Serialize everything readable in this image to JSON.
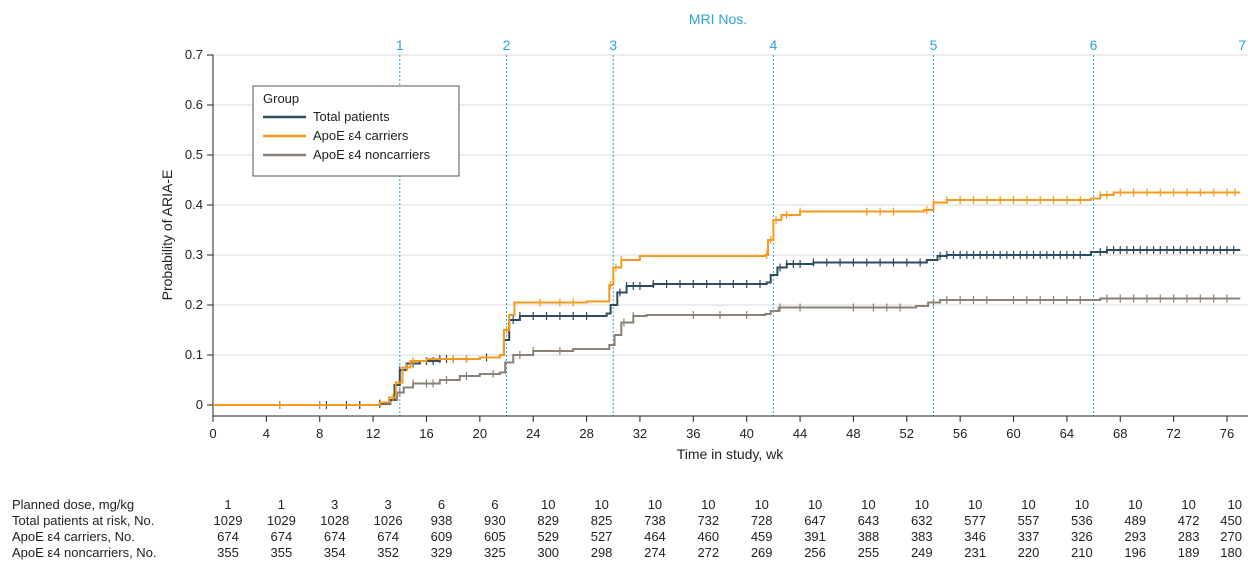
{
  "colors": {
    "total": "#2d4c5e",
    "carriers": "#f39a1f",
    "noncarriers": "#8a8278",
    "mri": "#2aa3d6",
    "grid": "#d9d9d9"
  },
  "mri_title": "MRI Nos.",
  "chart_data": {
    "type": "line",
    "xlabel": "Time in study, wk",
    "ylabel": "Probability of ARIA-E",
    "xlim": [
      0,
      77
    ],
    "ylim": [
      -0.02,
      0.7
    ],
    "xticks": [
      0,
      4,
      8,
      12,
      16,
      20,
      24,
      28,
      32,
      36,
      40,
      44,
      48,
      52,
      56,
      60,
      64,
      68,
      72,
      76
    ],
    "yticks": [
      0,
      0.1,
      0.2,
      0.3,
      0.4,
      0.5,
      0.6,
      0.7
    ],
    "ytick_labels": [
      "0",
      "0.1",
      "0.2",
      "0.3",
      "0.4",
      "0.5",
      "0.6",
      "0.7"
    ],
    "grid": "horizontal",
    "legend": {
      "title": "Group",
      "position": "top-left",
      "entries": [
        "Total patients",
        "ApoE ε4 carriers",
        "ApoE ε4 noncarriers"
      ]
    },
    "mri_markers": [
      {
        "label": "1",
        "x": 14
      },
      {
        "label": "2",
        "x": 22
      },
      {
        "label": "3",
        "x": 30
      },
      {
        "label": "4",
        "x": 42
      },
      {
        "label": "5",
        "x": 54
      },
      {
        "label": "6",
        "x": 66
      },
      {
        "label": "7",
        "x": 78
      }
    ],
    "series": [
      {
        "name": "Total patients",
        "color_key": "total",
        "steps": [
          [
            0,
            0
          ],
          [
            12.5,
            0.003
          ],
          [
            13.2,
            0.01
          ],
          [
            13.6,
            0.04
          ],
          [
            14.0,
            0.07
          ],
          [
            14.5,
            0.083
          ],
          [
            15.5,
            0.088
          ],
          [
            17,
            0.092
          ],
          [
            20,
            0.095
          ],
          [
            21.5,
            0.1
          ],
          [
            21.8,
            0.13
          ],
          [
            22.2,
            0.17
          ],
          [
            23,
            0.178
          ],
          [
            29.5,
            0.183
          ],
          [
            29.8,
            0.2
          ],
          [
            30.3,
            0.225
          ],
          [
            31,
            0.238
          ],
          [
            33,
            0.242
          ],
          [
            41.5,
            0.245
          ],
          [
            41.8,
            0.26
          ],
          [
            42.3,
            0.275
          ],
          [
            43,
            0.282
          ],
          [
            45,
            0.285
          ],
          [
            53.5,
            0.29
          ],
          [
            54.3,
            0.298
          ],
          [
            55,
            0.3
          ],
          [
            65.8,
            0.306
          ],
          [
            67,
            0.31
          ],
          [
            77,
            0.31
          ]
        ],
        "censor_x": [
          5,
          8.5,
          10,
          11,
          12.5,
          14,
          15,
          16,
          16.5,
          17,
          17.5,
          18,
          19,
          20.5,
          22.5,
          23,
          24,
          25,
          26,
          27,
          28,
          30.5,
          31,
          31.5,
          32,
          33,
          34,
          35,
          36,
          37,
          38,
          39,
          40,
          41,
          42.5,
          43,
          43.5,
          44,
          45,
          46,
          47,
          48,
          49,
          50,
          51,
          52,
          53,
          54.5,
          55,
          55.5,
          56,
          56.5,
          57,
          57.5,
          58,
          58.5,
          59,
          59.5,
          60,
          60.5,
          61,
          61.5,
          62,
          62.5,
          63,
          63.5,
          64,
          64.5,
          65,
          66.5,
          67,
          67.5,
          68,
          68.5,
          69,
          69.5,
          70,
          70.5,
          71,
          71.5,
          72,
          72.5,
          73,
          73.5,
          74,
          74.5,
          75,
          75.5,
          76,
          76.5
        ]
      },
      {
        "name": "ApoE ε4 carriers",
        "color_key": "carriers",
        "steps": [
          [
            0,
            0
          ],
          [
            12.5,
            0.005
          ],
          [
            13.2,
            0.015
          ],
          [
            13.7,
            0.045
          ],
          [
            14.2,
            0.075
          ],
          [
            14.8,
            0.088
          ],
          [
            16,
            0.092
          ],
          [
            20,
            0.095
          ],
          [
            21.5,
            0.1
          ],
          [
            21.8,
            0.15
          ],
          [
            22.2,
            0.18
          ],
          [
            22.6,
            0.205
          ],
          [
            28,
            0.207
          ],
          [
            29.7,
            0.24
          ],
          [
            30.0,
            0.275
          ],
          [
            30.6,
            0.29
          ],
          [
            32,
            0.298
          ],
          [
            41.4,
            0.3
          ],
          [
            41.6,
            0.33
          ],
          [
            42,
            0.37
          ],
          [
            42.6,
            0.38
          ],
          [
            44,
            0.387
          ],
          [
            53.3,
            0.39
          ],
          [
            54,
            0.405
          ],
          [
            55,
            0.41
          ],
          [
            65.8,
            0.413
          ],
          [
            66.5,
            0.42
          ],
          [
            67.5,
            0.425
          ],
          [
            77,
            0.425
          ]
        ],
        "censor_x": [
          5,
          13.5,
          14.5,
          15,
          18,
          19,
          22,
          24.5,
          26,
          27,
          29.8,
          30.2,
          30.6,
          41.5,
          41.8,
          42.2,
          43,
          44,
          49,
          50,
          51,
          53.5,
          54,
          55,
          56,
          57,
          58,
          59,
          60,
          61,
          62,
          63,
          64,
          65,
          66.5,
          67,
          68,
          69,
          70,
          71,
          72,
          73,
          74,
          75,
          76,
          76.6
        ]
      },
      {
        "name": "ApoE ε4 noncarriers",
        "color_key": "noncarriers",
        "steps": [
          [
            0,
            0
          ],
          [
            12.5,
            0.002
          ],
          [
            13.3,
            0.01
          ],
          [
            13.8,
            0.025
          ],
          [
            14.3,
            0.035
          ],
          [
            15,
            0.043
          ],
          [
            17,
            0.05
          ],
          [
            18.5,
            0.058
          ],
          [
            20,
            0.062
          ],
          [
            21.5,
            0.065
          ],
          [
            21.9,
            0.085
          ],
          [
            22.5,
            0.1
          ],
          [
            24,
            0.108
          ],
          [
            27,
            0.112
          ],
          [
            29.7,
            0.12
          ],
          [
            30.1,
            0.14
          ],
          [
            30.6,
            0.165
          ],
          [
            31.5,
            0.178
          ],
          [
            32.5,
            0.18
          ],
          [
            41.4,
            0.182
          ],
          [
            41.8,
            0.188
          ],
          [
            42.4,
            0.195
          ],
          [
            52.7,
            0.198
          ],
          [
            53.6,
            0.205
          ],
          [
            54.5,
            0.21
          ],
          [
            65.5,
            0.21
          ],
          [
            66.5,
            0.213
          ],
          [
            77,
            0.213
          ]
        ],
        "censor_x": [
          8,
          11,
          12.5,
          14,
          15,
          16,
          16.5,
          17.5,
          19,
          21,
          23,
          24,
          26,
          30.8,
          31.5,
          36,
          38,
          40,
          42.5,
          44,
          48,
          49.5,
          50.5,
          51.5,
          54,
          55,
          56,
          57,
          58,
          60,
          61,
          62,
          63,
          64,
          65,
          67,
          68,
          69,
          70,
          71,
          72,
          73,
          74,
          75,
          76
        ]
      }
    ]
  },
  "risk_table": {
    "rows": [
      {
        "label": "Planned dose, mg/kg",
        "values": [
          "1",
          "1",
          "3",
          "3",
          "6",
          "6",
          "10",
          "10",
          "10",
          "10",
          "10",
          "10",
          "10",
          "10",
          "10",
          "10",
          "10",
          "10",
          "10",
          "10"
        ]
      },
      {
        "label": "Total patients at risk, No.",
        "values": [
          "1029",
          "1029",
          "1028",
          "1026",
          "938",
          "930",
          "829",
          "825",
          "738",
          "732",
          "728",
          "647",
          "643",
          "632",
          "577",
          "557",
          "536",
          "489",
          "472",
          "450"
        ]
      },
      {
        "label": "ApoE ε4 carriers, No.",
        "values": [
          "674",
          "674",
          "674",
          "674",
          "609",
          "605",
          "529",
          "527",
          "464",
          "460",
          "459",
          "391",
          "388",
          "383",
          "346",
          "337",
          "326",
          "293",
          "283",
          "270"
        ]
      },
      {
        "label": "ApoE ε4 noncarriers, No.",
        "values": [
          "355",
          "355",
          "354",
          "352",
          "329",
          "325",
          "300",
          "298",
          "274",
          "272",
          "269",
          "256",
          "255",
          "249",
          "231",
          "220",
          "210",
          "196",
          "189",
          "180"
        ]
      }
    ]
  }
}
